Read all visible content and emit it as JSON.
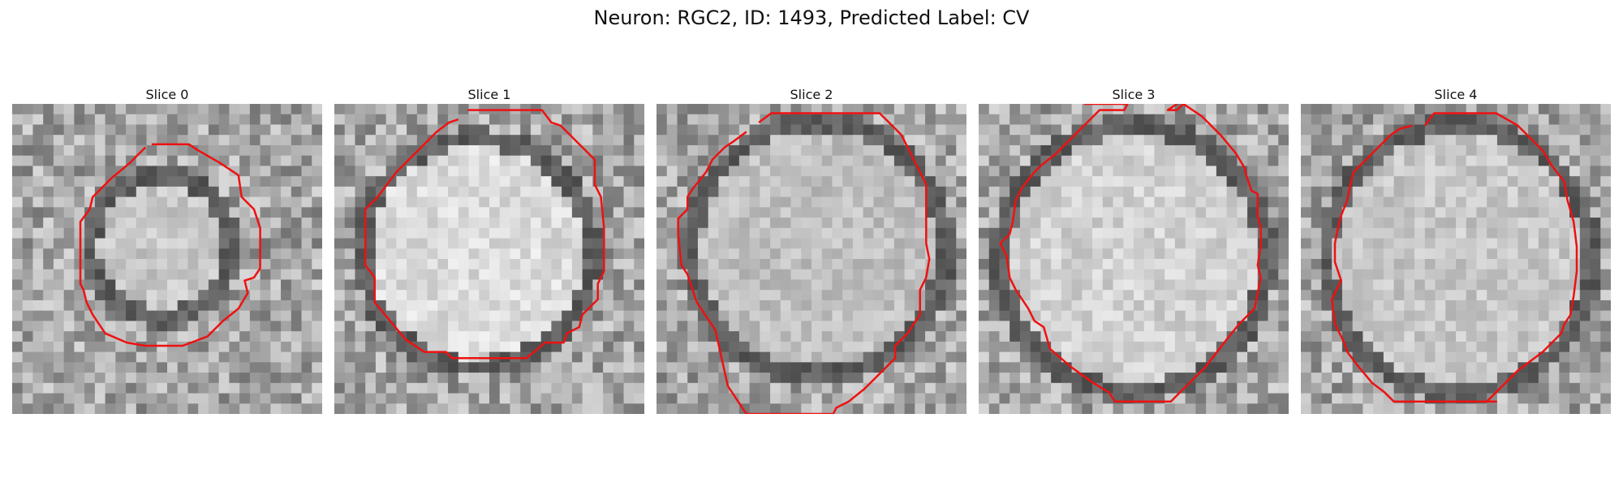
{
  "figure": {
    "title": "Neuron: RGC2, ID: 1493, Predicted Label: CV"
  },
  "panels": [
    {
      "title": "Slice 0",
      "seed": 11,
      "center": [
        0.48,
        0.46
      ],
      "radius": 0.2,
      "bright": 0.78
    },
    {
      "title": "Slice 1",
      "seed": 23,
      "center": [
        0.46,
        0.48
      ],
      "radius": 0.34,
      "bright": 0.86
    },
    {
      "title": "Slice 2",
      "seed": 37,
      "center": [
        0.52,
        0.47
      ],
      "radius": 0.38,
      "bright": 0.75
    },
    {
      "title": "Slice 3",
      "seed": 41,
      "center": [
        0.5,
        0.5
      ],
      "radius": 0.4,
      "bright": 0.82
    },
    {
      "title": "Slice 4",
      "seed": 53,
      "center": [
        0.51,
        0.5
      ],
      "radius": 0.4,
      "bright": 0.78
    }
  ],
  "contours": [
    [
      [
        0.45,
        0.13
      ],
      [
        0.57,
        0.13
      ],
      [
        0.6,
        0.15
      ],
      [
        0.67,
        0.19
      ],
      [
        0.73,
        0.23
      ],
      [
        0.74,
        0.3
      ],
      [
        0.78,
        0.34
      ],
      [
        0.8,
        0.4
      ],
      [
        0.8,
        0.53
      ],
      [
        0.78,
        0.56
      ],
      [
        0.75,
        0.57
      ],
      [
        0.76,
        0.61
      ],
      [
        0.73,
        0.66
      ],
      [
        0.68,
        0.7
      ],
      [
        0.65,
        0.73
      ],
      [
        0.63,
        0.75
      ],
      [
        0.55,
        0.78
      ],
      [
        0.43,
        0.78
      ],
      [
        0.37,
        0.77
      ],
      [
        0.3,
        0.74
      ],
      [
        0.26,
        0.68
      ],
      [
        0.24,
        0.64
      ],
      [
        0.23,
        0.6
      ],
      [
        0.22,
        0.58
      ],
      [
        0.22,
        0.38
      ],
      [
        0.25,
        0.34
      ],
      [
        0.26,
        0.3
      ],
      [
        0.28,
        0.28
      ],
      [
        0.32,
        0.24
      ],
      [
        0.38,
        0.19
      ],
      [
        0.4,
        0.17
      ],
      [
        0.43,
        0.14
      ]
    ],
    [
      [
        0.43,
        0.02
      ],
      [
        0.67,
        0.02
      ],
      [
        0.7,
        0.06
      ],
      [
        0.73,
        0.07
      ],
      [
        0.84,
        0.18
      ],
      [
        0.84,
        0.26
      ],
      [
        0.86,
        0.3
      ],
      [
        0.87,
        0.4
      ],
      [
        0.87,
        0.54
      ],
      [
        0.85,
        0.58
      ],
      [
        0.85,
        0.63
      ],
      [
        0.8,
        0.68
      ],
      [
        0.79,
        0.72
      ],
      [
        0.75,
        0.74
      ],
      [
        0.74,
        0.77
      ],
      [
        0.68,
        0.77
      ],
      [
        0.62,
        0.82
      ],
      [
        0.38,
        0.82
      ],
      [
        0.36,
        0.8
      ],
      [
        0.29,
        0.8
      ],
      [
        0.23,
        0.76
      ],
      [
        0.18,
        0.7
      ],
      [
        0.13,
        0.64
      ],
      [
        0.13,
        0.56
      ],
      [
        0.1,
        0.52
      ],
      [
        0.1,
        0.34
      ],
      [
        0.14,
        0.3
      ],
      [
        0.2,
        0.22
      ],
      [
        0.29,
        0.13
      ],
      [
        0.33,
        0.09
      ],
      [
        0.37,
        0.06
      ],
      [
        0.4,
        0.05
      ]
    ],
    [
      [
        0.33,
        0.06
      ],
      [
        0.37,
        0.03
      ],
      [
        0.72,
        0.03
      ],
      [
        0.75,
        0.06
      ],
      [
        0.79,
        0.1
      ],
      [
        0.85,
        0.22
      ],
      [
        0.87,
        0.26
      ],
      [
        0.87,
        0.45
      ],
      [
        0.88,
        0.5
      ],
      [
        0.87,
        0.56
      ],
      [
        0.85,
        0.6
      ],
      [
        0.85,
        0.68
      ],
      [
        0.81,
        0.74
      ],
      [
        0.77,
        0.78
      ],
      [
        0.77,
        0.82
      ],
      [
        0.73,
        0.86
      ],
      [
        0.67,
        0.92
      ],
      [
        0.62,
        0.96
      ],
      [
        0.6,
        0.97
      ],
      [
        0.58,
        0.98
      ],
      [
        0.57,
        1.0
      ],
      [
        0.29,
        1.0
      ],
      [
        0.23,
        0.91
      ],
      [
        0.19,
        0.73
      ],
      [
        0.13,
        0.64
      ],
      [
        0.1,
        0.55
      ],
      [
        0.08,
        0.52
      ],
      [
        0.07,
        0.42
      ],
      [
        0.07,
        0.37
      ],
      [
        0.1,
        0.34
      ],
      [
        0.1,
        0.3
      ],
      [
        0.12,
        0.27
      ],
      [
        0.16,
        0.22
      ],
      [
        0.18,
        0.18
      ],
      [
        0.22,
        0.14
      ],
      [
        0.25,
        0.12
      ],
      [
        0.29,
        0.09
      ]
    ],
    [
      [
        0.34,
        0.0
      ],
      [
        0.48,
        0.0
      ],
      [
        0.47,
        0.02
      ],
      [
        0.42,
        0.02
      ],
      [
        0.39,
        0.02
      ],
      [
        0.36,
        0.05
      ],
      [
        0.31,
        0.1
      ],
      [
        0.25,
        0.16
      ],
      [
        0.2,
        0.2
      ],
      [
        0.18,
        0.22
      ],
      [
        0.14,
        0.27
      ],
      [
        0.12,
        0.31
      ],
      [
        0.11,
        0.38
      ],
      [
        0.1,
        0.42
      ],
      [
        0.07,
        0.45
      ],
      [
        0.09,
        0.49
      ],
      [
        0.1,
        0.56
      ],
      [
        0.12,
        0.6
      ],
      [
        0.16,
        0.66
      ],
      [
        0.18,
        0.7
      ],
      [
        0.21,
        0.72
      ],
      [
        0.23,
        0.79
      ],
      [
        0.3,
        0.85
      ],
      [
        0.37,
        0.9
      ],
      [
        0.42,
        0.93
      ],
      [
        0.44,
        0.96
      ],
      [
        0.62,
        0.96
      ],
      [
        0.66,
        0.92
      ],
      [
        0.73,
        0.85
      ],
      [
        0.8,
        0.76
      ],
      [
        0.84,
        0.71
      ],
      [
        0.89,
        0.66
      ],
      [
        0.9,
        0.61
      ],
      [
        0.91,
        0.56
      ],
      [
        0.9,
        0.52
      ],
      [
        0.91,
        0.46
      ],
      [
        0.91,
        0.4
      ],
      [
        0.9,
        0.36
      ],
      [
        0.9,
        0.29
      ],
      [
        0.88,
        0.28
      ],
      [
        0.86,
        0.22
      ],
      [
        0.86,
        0.21
      ],
      [
        0.83,
        0.16
      ],
      [
        0.78,
        0.1
      ],
      [
        0.72,
        0.04
      ],
      [
        0.69,
        0.02
      ],
      [
        0.66,
        0.0
      ],
      [
        0.64,
        0.02
      ],
      [
        0.61,
        0.02
      ],
      [
        0.64,
        0.0
      ]
    ],
    [
      [
        0.4,
        0.07
      ],
      [
        0.43,
        0.03
      ],
      [
        0.63,
        0.03
      ],
      [
        0.7,
        0.07
      ],
      [
        0.78,
        0.15
      ],
      [
        0.81,
        0.2
      ],
      [
        0.85,
        0.25
      ],
      [
        0.86,
        0.31
      ],
      [
        0.88,
        0.38
      ],
      [
        0.89,
        0.46
      ],
      [
        0.89,
        0.54
      ],
      [
        0.88,
        0.62
      ],
      [
        0.87,
        0.68
      ],
      [
        0.85,
        0.71
      ],
      [
        0.84,
        0.74
      ],
      [
        0.78,
        0.8
      ],
      [
        0.7,
        0.86
      ],
      [
        0.66,
        0.9
      ],
      [
        0.63,
        0.93
      ],
      [
        0.6,
        0.96
      ],
      [
        0.63,
        0.96
      ],
      [
        0.3,
        0.96
      ],
      [
        0.27,
        0.93
      ],
      [
        0.23,
        0.9
      ],
      [
        0.18,
        0.84
      ],
      [
        0.15,
        0.8
      ],
      [
        0.14,
        0.77
      ],
      [
        0.11,
        0.71
      ],
      [
        0.1,
        0.63
      ],
      [
        0.13,
        0.57
      ],
      [
        0.11,
        0.51
      ],
      [
        0.11,
        0.45
      ],
      [
        0.12,
        0.4
      ],
      [
        0.13,
        0.36
      ],
      [
        0.15,
        0.31
      ],
      [
        0.16,
        0.26
      ],
      [
        0.17,
        0.22
      ],
      [
        0.21,
        0.18
      ],
      [
        0.25,
        0.14
      ],
      [
        0.29,
        0.1
      ],
      [
        0.32,
        0.08
      ],
      [
        0.36,
        0.07
      ]
    ]
  ],
  "colors": {
    "contour": "#ee1111",
    "background": "#ffffff"
  }
}
